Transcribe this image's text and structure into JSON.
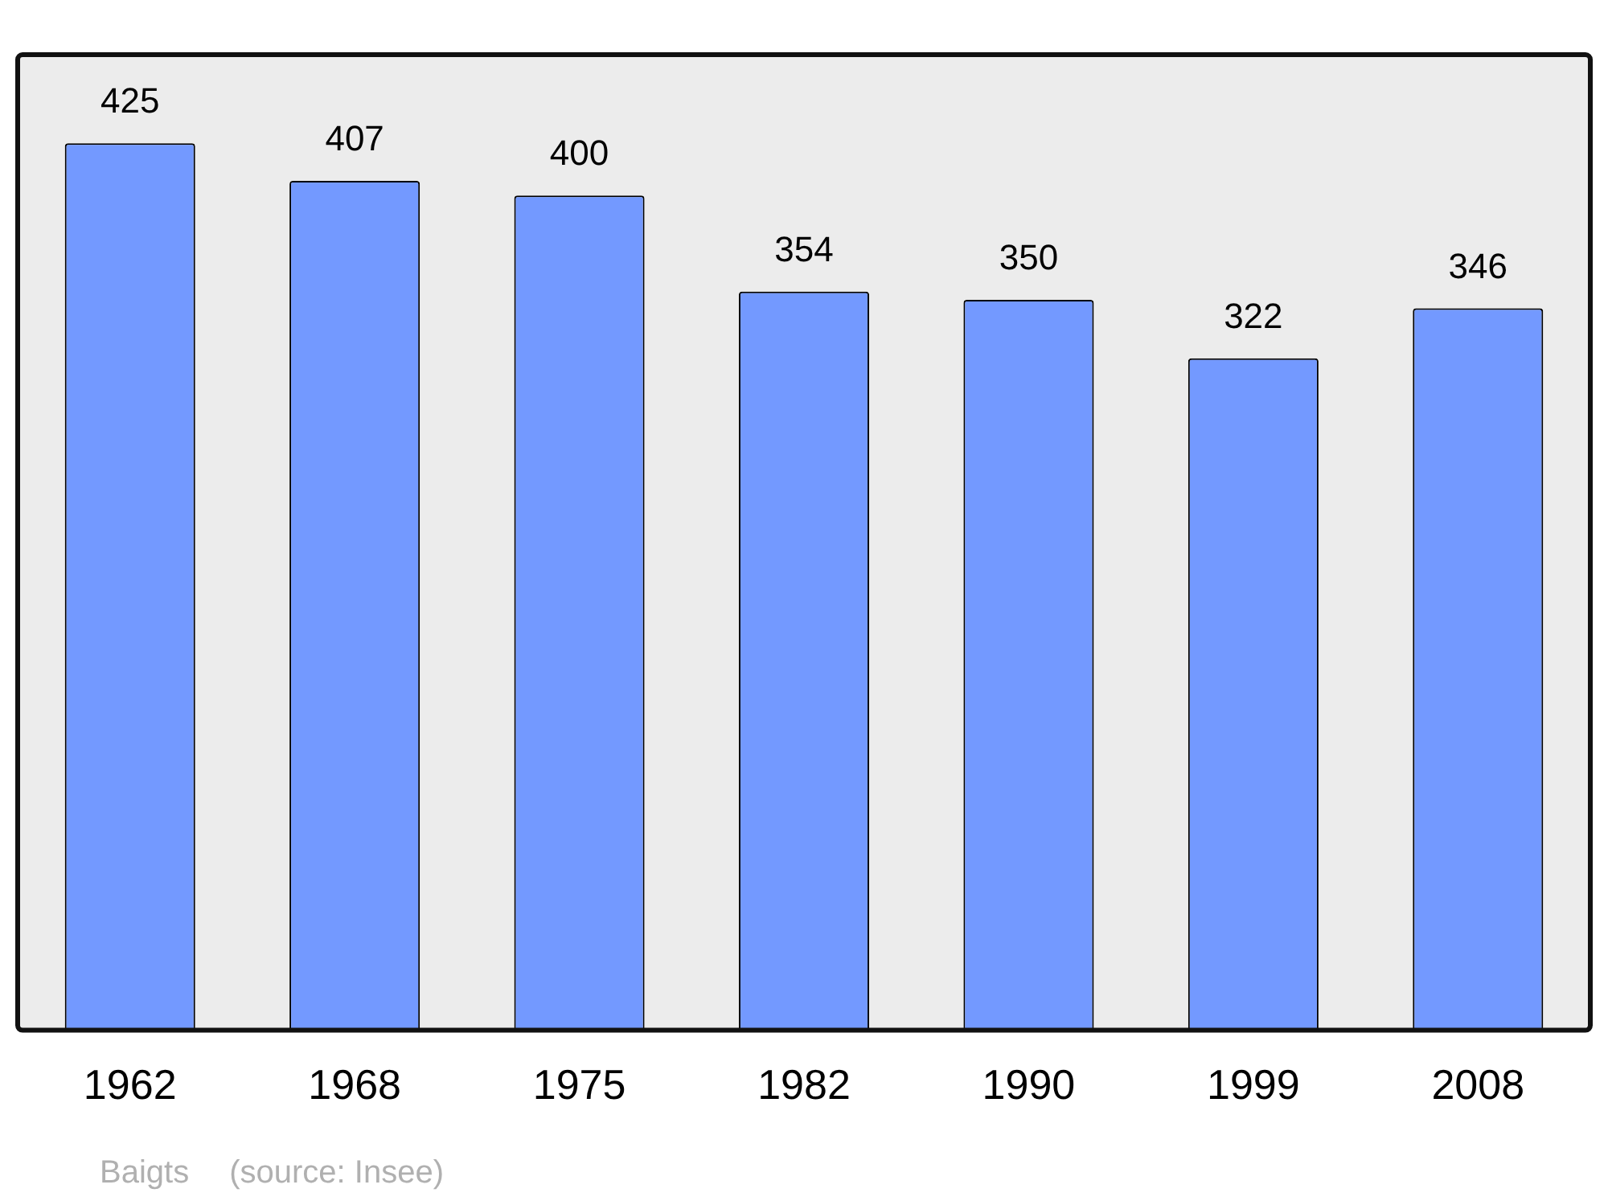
{
  "chart_data": {
    "type": "bar",
    "categories": [
      "1962",
      "1968",
      "1975",
      "1982",
      "1990",
      "1999",
      "2008"
    ],
    "values": [
      425,
      407,
      400,
      354,
      350,
      322,
      346
    ],
    "color": "#7399ff",
    "data_labels": true,
    "grid": false,
    "legend": false,
    "annotations": [
      "Baigts",
      "(source: Insee)"
    ]
  }
}
